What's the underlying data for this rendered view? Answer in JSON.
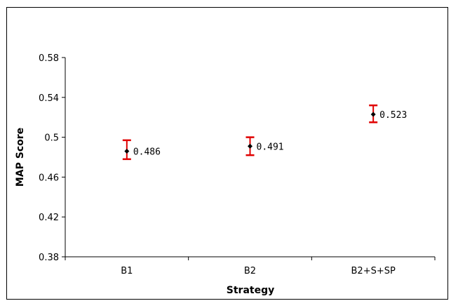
{
  "chart_data": {
    "type": "scatter",
    "title": "",
    "xlabel": "Strategy",
    "ylabel": "MAP Score",
    "categories": [
      "B1",
      "B2",
      "B2+S+SP"
    ],
    "values": [
      0.486,
      0.491,
      0.523
    ],
    "value_labels": [
      "0.486",
      "0.491",
      "0.523"
    ],
    "error_low": [
      0.478,
      0.482,
      0.515
    ],
    "error_high": [
      0.497,
      0.5,
      0.532
    ],
    "ylim": [
      0.38,
      0.58
    ],
    "yticks": [
      0.38,
      0.42,
      0.46,
      0.5,
      0.54,
      0.58
    ],
    "ytick_labels": [
      "0.38",
      "0.42",
      "0.46",
      "0.5",
      "0.54",
      "0.58"
    ],
    "grid": false,
    "legend": "none",
    "colors": {
      "point": "#000000",
      "error_bar": "#e00000",
      "axis": "#000000"
    }
  }
}
